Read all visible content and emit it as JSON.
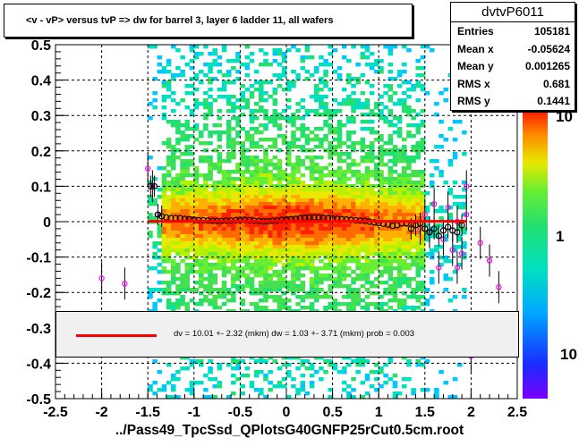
{
  "title": "<v - vP>       versus  tvP =>  dw for barrel 3, layer 6 ladder 11, all wafers",
  "stats": {
    "name": "dvtvP6011",
    "rows": [
      {
        "key": "Entries",
        "value": "105181"
      },
      {
        "key": "Mean x",
        "value": "-0.05624"
      },
      {
        "key": "Mean y",
        "value": "0.001265"
      },
      {
        "key": "RMS x",
        "value": "0.681"
      },
      {
        "key": "RMS y",
        "value": "0.1441"
      }
    ]
  },
  "fit_text": "dv =    10.01 +-  2.32 (mkm) dw =     1.03 +-  3.71 (mkm) prob = 0.003",
  "x_title": "../Pass49_TpcSsd_QPlotsG40GNFP25rCut0.5cm.root",
  "colorbar_labels": [
    "10",
    "1",
    "10"
  ],
  "colors": {
    "fit_line": "#ff0000",
    "profile_black": "#000000",
    "profile_magenta": "#ff00ff"
  },
  "chart_data": {
    "type": "heatmap",
    "xlim": [
      -2.5,
      2.5
    ],
    "ylim": [
      -0.5,
      0.5
    ],
    "xticks": [
      "-2.5",
      "-2",
      "-1.5",
      "-1",
      "-0.5",
      "0",
      "0.5",
      "1",
      "1.5",
      "2",
      "2.5"
    ],
    "yticks": [
      "-0.5",
      "-0.4",
      "-0.3",
      "-0.2",
      "-0.1",
      "0",
      "0.1",
      "0.2",
      "0.3",
      "0.4",
      "0.5"
    ],
    "grid": true,
    "fit_line": {
      "x": [
        -1.5,
        1.95
      ],
      "y": [
        0.001,
        0.001
      ]
    },
    "profile_black": {
      "x": [
        -1.47,
        -1.43,
        -1.39,
        -1.35,
        -1.3,
        -1.25,
        -1.2,
        -1.15,
        -1.1,
        -1.05,
        -1.0,
        -0.95,
        -0.9,
        -0.85,
        -0.8,
        -0.75,
        -0.7,
        -0.65,
        -0.6,
        -0.55,
        -0.5,
        -0.45,
        -0.4,
        -0.35,
        -0.3,
        -0.25,
        -0.2,
        -0.15,
        -0.1,
        -0.05,
        0.0,
        0.05,
        0.1,
        0.15,
        0.2,
        0.25,
        0.3,
        0.35,
        0.4,
        0.45,
        0.5,
        0.55,
        0.6,
        0.65,
        0.7,
        0.75,
        0.8,
        0.85,
        0.9,
        0.95,
        1.0,
        1.05,
        1.1,
        1.15,
        1.2,
        1.25,
        1.3,
        1.35,
        1.4,
        1.45,
        1.5,
        1.55,
        1.6,
        1.65,
        1.7,
        1.75,
        1.8,
        1.85,
        1.9
      ],
      "y": [
        0.1,
        0.1,
        0.02,
        0.015,
        0.012,
        0.01,
        0.01,
        0.01,
        0.008,
        0.007,
        0.005,
        0.004,
        0.004,
        0.003,
        0.002,
        0.002,
        0.002,
        0.003,
        0.003,
        0.004,
        0.004,
        0.005,
        0.004,
        0.003,
        0.002,
        0.001,
        0.001,
        0.002,
        0.003,
        0.005,
        0.006,
        0.007,
        0.008,
        0.01,
        0.011,
        0.012,
        0.012,
        0.012,
        0.011,
        0.01,
        0.009,
        0.008,
        0.007,
        0.006,
        0.005,
        0.004,
        0.003,
        0.002,
        0.0,
        -0.002,
        -0.004,
        -0.006,
        -0.008,
        -0.012,
        -0.01,
        -0.005,
        -0.005,
        -0.02,
        -0.01,
        -0.005,
        -0.02,
        -0.03,
        -0.02,
        -0.04,
        -0.025,
        -0.015,
        -0.025,
        -0.03,
        -0.01
      ]
    },
    "profile_magenta": {
      "x": [
        -2.0,
        -1.75,
        -1.5,
        -1.45,
        -1.4,
        1.45,
        1.5,
        1.55,
        1.6,
        1.65,
        1.7,
        1.75,
        1.8,
        1.85,
        1.9,
        1.95,
        2.0,
        2.1,
        2.2,
        2.3,
        1.95,
        1.85
      ],
      "y": [
        -0.16,
        -0.175,
        0.15,
        0.1,
        0.02,
        -0.02,
        0.02,
        -0.03,
        0.05,
        -0.13,
        -0.05,
        0.04,
        -0.08,
        -0.13,
        -0.09,
        0.1,
        -0.38,
        -0.06,
        -0.11,
        -0.185,
        0.02,
        0.0
      ]
    }
  }
}
